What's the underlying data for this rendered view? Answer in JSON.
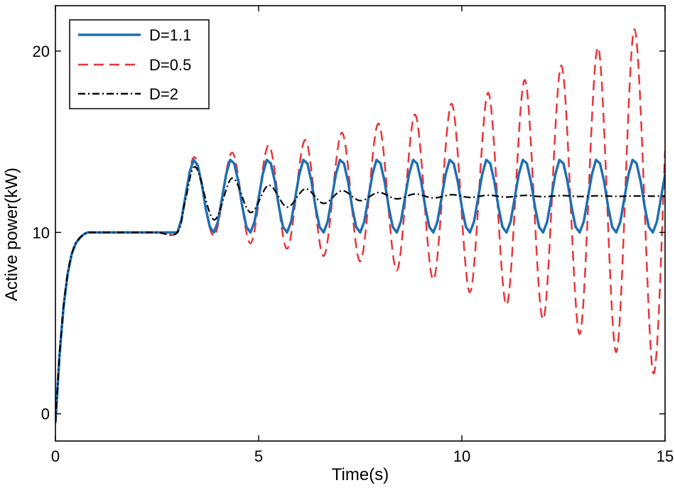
{
  "chart_data": {
    "type": "line",
    "title": "",
    "xlabel": "Time(s)",
    "ylabel": "Active power(kW)",
    "xlim": [
      0,
      15
    ],
    "ylim": [
      -1.5,
      22.5
    ],
    "xticks": [
      0,
      5,
      10,
      15
    ],
    "xtick_labels": [
      "0",
      "5",
      "10",
      "15"
    ],
    "yticks": [
      0,
      10,
      20
    ],
    "ytick_labels": [
      "0",
      "10",
      "20"
    ],
    "grid": false,
    "legend_position": "top-left",
    "series": [
      {
        "name": "D=1.1",
        "color": "#1f6fb4",
        "style": "solid",
        "x": [
          0,
          0.1,
          0.2,
          0.3,
          0.4,
          0.5,
          0.6,
          0.7,
          0.8,
          1.0,
          1.5,
          2.0,
          2.5,
          3.0,
          3.1,
          3.2,
          3.3,
          3.4,
          3.5,
          3.6,
          3.7,
          3.8,
          3.9,
          4.0,
          4.1,
          4.2,
          4.3,
          4.4,
          4.5,
          4.6,
          4.7,
          4.8,
          4.9,
          5.0,
          5.1,
          5.2,
          5.3,
          5.4,
          5.5,
          5.6,
          5.7,
          5.8,
          5.9,
          6.0,
          6.1,
          6.2,
          6.3,
          6.4,
          6.5,
          6.6,
          6.7,
          6.8,
          6.9,
          7.0,
          7.1,
          7.2,
          7.3,
          7.4,
          7.5,
          7.6,
          7.7,
          7.8,
          7.9,
          8.0,
          8.1,
          8.2,
          8.3,
          8.4,
          8.5,
          8.6,
          8.7,
          8.8,
          8.9,
          9.0,
          9.1,
          9.2,
          9.3,
          9.4,
          9.5,
          9.6,
          9.7,
          9.8,
          9.9,
          10.0,
          10.1,
          10.2,
          10.3,
          10.4,
          10.5,
          10.6,
          10.7,
          10.8,
          10.9,
          11.0,
          11.1,
          11.2,
          11.3,
          11.4,
          11.5,
          11.6,
          11.7,
          11.8,
          11.9,
          12.0,
          12.1,
          12.2,
          12.3,
          12.4,
          12.5,
          12.6,
          12.7,
          12.8,
          12.9,
          13.0,
          13.1,
          13.2,
          13.3,
          13.4,
          13.5,
          13.6,
          13.7,
          13.8,
          13.9,
          14.0,
          14.1,
          14.2,
          14.3,
          14.4,
          14.5,
          14.6,
          14.7,
          14.8,
          14.9,
          15.0
        ],
        "y": [
          -0.5,
          3.2,
          5.9,
          7.7,
          8.8,
          9.4,
          9.7,
          9.9,
          10.0,
          10.0,
          10.0,
          10.0,
          10.0,
          10.0,
          10.7,
          12.0,
          13.3,
          14.0,
          13.7,
          12.7,
          11.3,
          10.3,
          10.0,
          10.6,
          11.9,
          13.2,
          14.0,
          13.8,
          12.8,
          11.4,
          10.3,
          10.0,
          10.6,
          11.9,
          13.2,
          14.0,
          13.8,
          12.8,
          11.4,
          10.3,
          10.0,
          10.6,
          11.9,
          13.2,
          14.0,
          13.8,
          12.8,
          11.4,
          10.3,
          10.0,
          10.6,
          11.9,
          13.2,
          14.0,
          13.8,
          12.8,
          11.4,
          10.3,
          10.0,
          10.6,
          11.9,
          13.2,
          14.0,
          13.8,
          12.8,
          11.4,
          10.3,
          10.0,
          10.6,
          11.9,
          13.2,
          14.0,
          13.8,
          12.8,
          11.4,
          10.3,
          10.0,
          10.6,
          11.9,
          13.2,
          14.0,
          13.8,
          12.8,
          11.4,
          10.3,
          10.0,
          10.6,
          11.9,
          13.2,
          14.0,
          13.8,
          12.8,
          11.4,
          10.3,
          10.0,
          10.6,
          11.9,
          13.2,
          14.0,
          13.8,
          12.8,
          11.4,
          10.3,
          10.0,
          10.6,
          11.9,
          13.2,
          14.0,
          13.8,
          12.8,
          11.4,
          10.3,
          10.0,
          10.6,
          11.9,
          13.2,
          14.0,
          13.8,
          12.8,
          11.4,
          10.3,
          10.0,
          10.6,
          11.9,
          13.2,
          14.0,
          13.8,
          12.8,
          11.4,
          10.3,
          10.0,
          10.6,
          11.9,
          13.2
        ]
      },
      {
        "name": "D=0.5",
        "color": "#e8353a",
        "style": "dashed",
        "x": [
          0,
          0.1,
          0.2,
          0.3,
          0.4,
          0.5,
          0.6,
          0.7,
          0.8,
          1.0,
          1.5,
          2.0,
          2.5,
          3.0,
          3.2,
          3.45,
          3.9,
          4.35,
          4.8,
          5.25,
          5.7,
          6.15,
          6.6,
          7.05,
          7.5,
          7.95,
          8.4,
          8.85,
          9.3,
          9.75,
          10.2,
          10.65,
          11.1,
          11.55,
          12.0,
          12.45,
          12.9,
          13.35,
          13.8,
          14.25,
          14.7,
          15.0
        ],
        "y": [
          -0.5,
          3.2,
          5.9,
          7.7,
          8.8,
          9.4,
          9.7,
          9.9,
          10.0,
          10.0,
          10.0,
          10.0,
          10.0,
          10.0,
          12.0,
          14.1,
          9.8,
          14.4,
          9.4,
          14.8,
          9.1,
          15.1,
          8.7,
          15.5,
          8.4,
          16.0,
          7.9,
          16.5,
          7.4,
          17.1,
          6.7,
          17.7,
          6.0,
          18.4,
          5.2,
          19.2,
          4.4,
          20.2,
          3.4,
          21.2,
          2.3,
          14.5
        ]
      },
      {
        "name": "D=2",
        "color": "#000000",
        "style": "dashdot",
        "x": [
          0,
          0.1,
          0.2,
          0.3,
          0.4,
          0.5,
          0.6,
          0.7,
          0.8,
          1.0,
          1.5,
          2.0,
          2.5,
          3.0,
          3.2,
          3.45,
          3.9,
          4.35,
          4.8,
          5.25,
          5.7,
          6.15,
          6.6,
          7.05,
          7.5,
          7.95,
          8.4,
          8.85,
          9.3,
          9.75,
          10.2,
          10.65,
          11.1,
          11.55,
          12.0,
          12.45,
          12.9,
          13.35,
          13.8,
          14.25,
          14.7,
          15.0
        ],
        "y": [
          -0.5,
          3.2,
          5.9,
          7.7,
          8.8,
          9.4,
          9.7,
          9.9,
          10.0,
          10.0,
          10.0,
          10.0,
          10.0,
          10.0,
          11.8,
          13.6,
          10.7,
          13.0,
          11.1,
          12.6,
          11.4,
          12.4,
          11.6,
          12.3,
          11.75,
          12.2,
          11.85,
          12.12,
          11.9,
          12.08,
          11.93,
          12.05,
          11.95,
          12.04,
          11.97,
          12.03,
          11.98,
          12.02,
          11.99,
          12.01,
          12.0,
          12.0
        ]
      }
    ]
  }
}
